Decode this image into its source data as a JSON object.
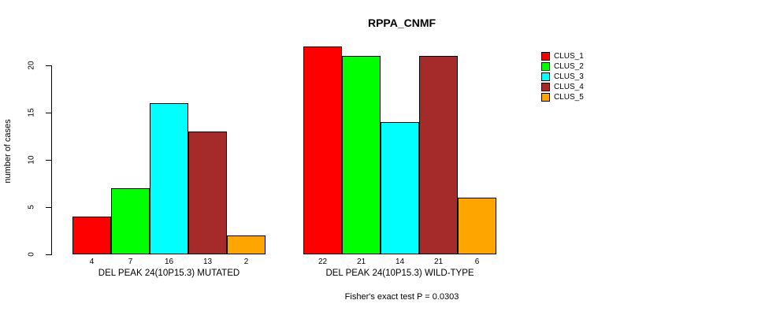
{
  "chart_data": {
    "type": "bar",
    "title": "RPPA_CNMF",
    "ylabel": "number of cases",
    "xlabel": "",
    "ylim": [
      0,
      22
    ],
    "yticks": [
      0,
      5,
      10,
      15,
      20
    ],
    "grid": false,
    "legend_position": "right-outside",
    "categories": [
      "DEL PEAK 24(10P15.3) MUTATED",
      "DEL PEAK 24(10P15.3) WILD-TYPE"
    ],
    "series": [
      {
        "name": "CLUS_1",
        "color": "#FF0000",
        "values": [
          4,
          22
        ]
      },
      {
        "name": "CLUS_2",
        "color": "#00FF00",
        "values": [
          7,
          21
        ]
      },
      {
        "name": "CLUS_3",
        "color": "#00FFFF",
        "values": [
          16,
          14
        ]
      },
      {
        "name": "CLUS_4",
        "color": "#A52A2A",
        "values": [
          13,
          21
        ]
      },
      {
        "name": "CLUS_5",
        "color": "#FFA500",
        "values": [
          2,
          6
        ]
      }
    ],
    "annotation": "Fisher's exact test P = 0.0303"
  },
  "colors": {
    "background": "#FFFFFF",
    "text": "#000000",
    "bar_border": "#000000"
  }
}
